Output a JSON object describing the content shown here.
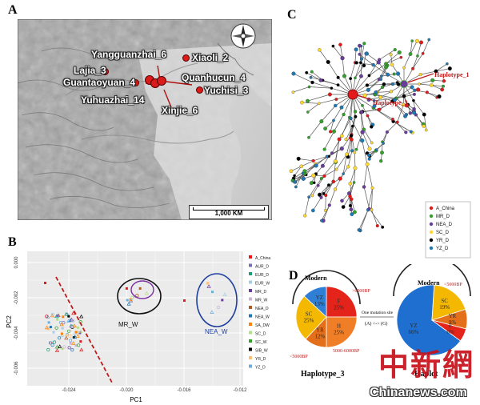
{
  "panels": {
    "a": "A",
    "b": "B",
    "c": "C",
    "d": "D"
  },
  "map": {
    "sites": [
      {
        "name": "Yangguanzhai_6"
      },
      {
        "name": "Xiaoli_2"
      },
      {
        "name": "Lajia_3"
      },
      {
        "name": "Quanhucun_4"
      },
      {
        "name": "Guantaoyuan_4"
      },
      {
        "name": "Yuchisi_3"
      },
      {
        "name": "Yuhuazhai_14"
      },
      {
        "name": "Xinjie_6"
      }
    ],
    "scale_label": "1,000 KM",
    "compass": "compass-rose-icon"
  },
  "pca": {
    "ylabel": "PC2",
    "xlabel": "PC1",
    "x_ticks": [
      "-0.024",
      "-0.020",
      "-0.016",
      "-0.012"
    ],
    "y_ticks": [
      "0.000",
      "-0.002",
      "-0.004",
      "-0.006"
    ],
    "cluster_labels": [
      "MR_W",
      "NEA_W"
    ],
    "legend": [
      "A_China",
      "AUR_D",
      "EUR_D",
      "EUR_W",
      "MR_D",
      "MR_W",
      "NEA_D",
      "NEA_W",
      "SA_DW",
      "SC_D",
      "SC_W",
      "SIB_W",
      "YR_D",
      "YZ_D"
    ],
    "legend_colors": [
      "#e31a1c",
      "#7570b3",
      "#1b9e77",
      "#a6cee3",
      "#6a3d9a",
      "#cab2d6",
      "#b15928",
      "#1f78b4",
      "#ff7f00",
      "#b2df8a",
      "#33a02c",
      "#000000",
      "#fdbf6f",
      "#6baed6"
    ]
  },
  "network": {
    "labels": [
      "Haplotype_1",
      "Haplotype_3"
    ],
    "legend": [
      "A_China",
      "MR_D",
      "NEA_D",
      "SC_D",
      "YR_D",
      "YZ_D"
    ],
    "legend_colors": [
      "#e31a1c",
      "#33a02c",
      "#6a3d9a",
      "#ffd92f",
      "#000000",
      "#1f78b4"
    ]
  },
  "haplo": {
    "modern_left": "Modern",
    "modern_right": "Modern",
    "left_pie": [
      {
        "label": "F\n25%",
        "value": 25,
        "color": "#e4231a"
      },
      {
        "label": "H\n25%",
        "value": 25,
        "color": "#f07e26"
      },
      {
        "label": "YR\n12%",
        "value": 12,
        "color": "#e46f1a"
      },
      {
        "label": "SC\n25%",
        "value": 25,
        "color": "#f5b800"
      },
      {
        "label": "YZ\n13%",
        "value": 13,
        "color": "#2f7fd6"
      }
    ],
    "right_pie": [
      {
        "label": "YZ\n66%",
        "value": 66,
        "color": "#1f6fd1"
      },
      {
        "label": "SC\n19%",
        "value": 19,
        "color": "#f5b800"
      },
      {
        "label": "YR\n9%",
        "value": 9,
        "color": "#e46f1a"
      },
      {
        "label": "F\n6%",
        "value": 6,
        "color": "#e4231a"
      }
    ],
    "left_age_top": ">6000BP",
    "left_age_bottom": "5000-6000BP",
    "left_age_left": "<5000BP",
    "right_age_top": "<5000BP",
    "mutation": "One mutation site",
    "mutation_detail": "(A) <-> (G)",
    "caption_left": "Haplotype_3",
    "caption_right": "Haplot"
  },
  "watermark": {
    "cn": "中新網",
    "en": "Chinanews.com"
  }
}
